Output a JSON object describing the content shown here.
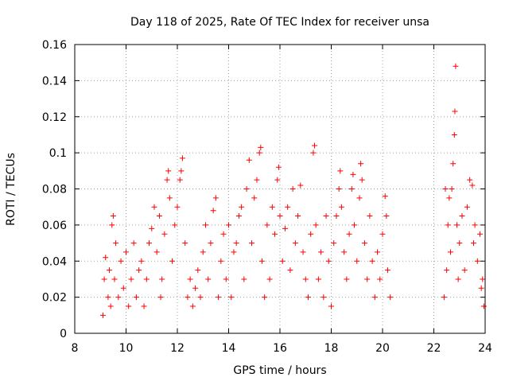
{
  "chart_data": {
    "type": "scatter",
    "title": "Day 118 of 2025, Rate Of TEC Index for receiver unsa",
    "xlabel": "GPS time / hours",
    "ylabel": "ROTI / TECUs",
    "xlim": [
      8,
      24
    ],
    "ylim": [
      0,
      0.16
    ],
    "xticks": [
      "8",
      "10",
      "12",
      "14",
      "16",
      "18",
      "20",
      "22",
      "24"
    ],
    "yticks": [
      "0",
      "0.02",
      "0.04",
      "0.06",
      "0.08",
      "0.1",
      "0.12",
      "0.14",
      "0.16"
    ],
    "grid": true,
    "marker": "+",
    "color": "#ff0000",
    "data_gap_hours": [
      20.4,
      22.3
    ],
    "series": [
      {
        "points": [
          [
            9.1,
            0.01
          ],
          [
            9.15,
            0.03
          ],
          [
            9.2,
            0.042
          ],
          [
            9.3,
            0.02
          ],
          [
            9.35,
            0.035
          ],
          [
            9.4,
            0.015
          ],
          [
            9.45,
            0.06
          ],
          [
            9.5,
            0.065
          ],
          [
            9.55,
            0.03
          ],
          [
            9.6,
            0.05
          ],
          [
            9.7,
            0.02
          ],
          [
            9.8,
            0.04
          ],
          [
            9.9,
            0.025
          ],
          [
            10.0,
            0.045
          ],
          [
            10.1,
            0.015
          ],
          [
            10.2,
            0.03
          ],
          [
            10.3,
            0.05
          ],
          [
            10.4,
            0.02
          ],
          [
            10.5,
            0.035
          ],
          [
            10.6,
            0.04
          ],
          [
            10.7,
            0.015
          ],
          [
            10.8,
            0.03
          ],
          [
            10.9,
            0.05
          ],
          [
            11.0,
            0.058
          ],
          [
            11.1,
            0.07
          ],
          [
            11.2,
            0.045
          ],
          [
            11.3,
            0.065
          ],
          [
            11.35,
            0.02
          ],
          [
            11.4,
            0.03
          ],
          [
            11.5,
            0.055
          ],
          [
            11.6,
            0.085
          ],
          [
            11.65,
            0.09
          ],
          [
            11.7,
            0.075
          ],
          [
            11.8,
            0.04
          ],
          [
            11.9,
            0.06
          ],
          [
            12.0,
            0.07
          ],
          [
            12.1,
            0.085
          ],
          [
            12.15,
            0.09
          ],
          [
            12.2,
            0.097
          ],
          [
            12.3,
            0.05
          ],
          [
            12.4,
            0.02
          ],
          [
            12.5,
            0.03
          ],
          [
            12.6,
            0.015
          ],
          [
            12.7,
            0.025
          ],
          [
            12.8,
            0.035
          ],
          [
            12.9,
            0.02
          ],
          [
            13.0,
            0.045
          ],
          [
            13.1,
            0.06
          ],
          [
            13.2,
            0.03
          ],
          [
            13.3,
            0.05
          ],
          [
            13.4,
            0.068
          ],
          [
            13.5,
            0.075
          ],
          [
            13.6,
            0.02
          ],
          [
            13.7,
            0.04
          ],
          [
            13.8,
            0.055
          ],
          [
            13.9,
            0.03
          ],
          [
            14.0,
            0.06
          ],
          [
            14.1,
            0.02
          ],
          [
            14.2,
            0.045
          ],
          [
            14.3,
            0.05
          ],
          [
            14.4,
            0.065
          ],
          [
            14.5,
            0.07
          ],
          [
            14.6,
            0.03
          ],
          [
            14.7,
            0.08
          ],
          [
            14.8,
            0.096
          ],
          [
            14.9,
            0.05
          ],
          [
            15.0,
            0.075
          ],
          [
            15.1,
            0.085
          ],
          [
            15.2,
            0.1
          ],
          [
            15.25,
            0.103
          ],
          [
            15.3,
            0.04
          ],
          [
            15.4,
            0.02
          ],
          [
            15.5,
            0.06
          ],
          [
            15.6,
            0.03
          ],
          [
            15.7,
            0.07
          ],
          [
            15.8,
            0.055
          ],
          [
            15.9,
            0.085
          ],
          [
            15.95,
            0.092
          ],
          [
            16.0,
            0.065
          ],
          [
            16.1,
            0.04
          ],
          [
            16.2,
            0.058
          ],
          [
            16.3,
            0.07
          ],
          [
            16.4,
            0.035
          ],
          [
            16.5,
            0.08
          ],
          [
            16.6,
            0.05
          ],
          [
            16.7,
            0.065
          ],
          [
            16.8,
            0.082
          ],
          [
            16.9,
            0.045
          ],
          [
            17.0,
            0.03
          ],
          [
            17.1,
            0.02
          ],
          [
            17.2,
            0.055
          ],
          [
            17.3,
            0.1
          ],
          [
            17.35,
            0.104
          ],
          [
            17.4,
            0.06
          ],
          [
            17.5,
            0.03
          ],
          [
            17.6,
            0.045
          ],
          [
            17.7,
            0.02
          ],
          [
            17.8,
            0.065
          ],
          [
            17.9,
            0.04
          ],
          [
            18.0,
            0.015
          ],
          [
            18.1,
            0.05
          ],
          [
            18.2,
            0.065
          ],
          [
            18.3,
            0.08
          ],
          [
            18.35,
            0.09
          ],
          [
            18.4,
            0.07
          ],
          [
            18.5,
            0.045
          ],
          [
            18.6,
            0.03
          ],
          [
            18.7,
            0.055
          ],
          [
            18.8,
            0.08
          ],
          [
            18.85,
            0.088
          ],
          [
            18.9,
            0.06
          ],
          [
            19.0,
            0.04
          ],
          [
            19.1,
            0.075
          ],
          [
            19.15,
            0.094
          ],
          [
            19.2,
            0.085
          ],
          [
            19.3,
            0.05
          ],
          [
            19.4,
            0.03
          ],
          [
            19.5,
            0.065
          ],
          [
            19.6,
            0.04
          ],
          [
            19.7,
            0.02
          ],
          [
            19.8,
            0.045
          ],
          [
            19.9,
            0.03
          ],
          [
            20.0,
            0.055
          ],
          [
            20.1,
            0.076
          ],
          [
            20.15,
            0.065
          ],
          [
            20.2,
            0.035
          ],
          [
            20.3,
            0.02
          ],
          [
            22.4,
            0.02
          ],
          [
            22.45,
            0.08
          ],
          [
            22.5,
            0.035
          ],
          [
            22.55,
            0.06
          ],
          [
            22.6,
            0.075
          ],
          [
            22.65,
            0.045
          ],
          [
            22.7,
            0.08
          ],
          [
            22.75,
            0.094
          ],
          [
            22.8,
            0.11
          ],
          [
            22.82,
            0.123
          ],
          [
            22.85,
            0.148
          ],
          [
            22.9,
            0.06
          ],
          [
            22.95,
            0.03
          ],
          [
            23.0,
            0.05
          ],
          [
            23.1,
            0.065
          ],
          [
            23.2,
            0.035
          ],
          [
            23.3,
            0.07
          ],
          [
            23.4,
            0.085
          ],
          [
            23.5,
            0.082
          ],
          [
            23.55,
            0.05
          ],
          [
            23.6,
            0.06
          ],
          [
            23.7,
            0.04
          ],
          [
            23.8,
            0.055
          ],
          [
            23.85,
            0.025
          ],
          [
            23.9,
            0.03
          ],
          [
            23.95,
            0.015
          ]
        ]
      }
    ]
  }
}
